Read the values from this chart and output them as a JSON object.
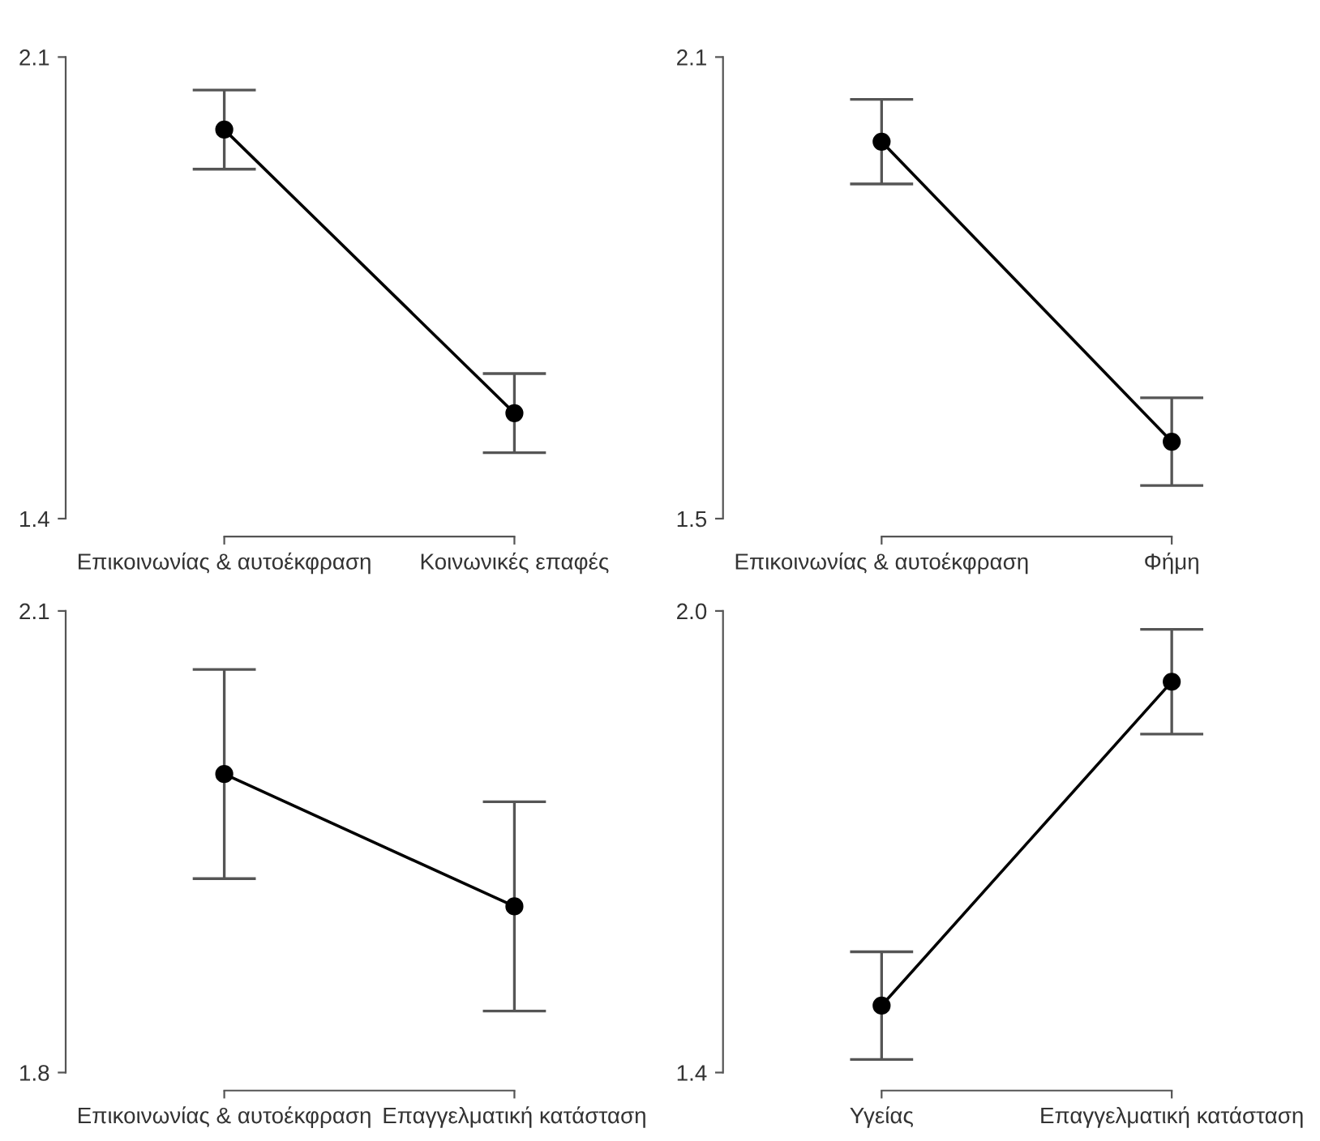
{
  "chart_data": [
    {
      "type": "line",
      "categories": [
        "Επικοινωνίας & αυτοέκφραση",
        "Κοινωνικές επαφές"
      ],
      "series": [
        {
          "color": "#000000",
          "values": [
            1.99,
            1.56
          ],
          "errors": [
            0.06,
            0.06
          ]
        }
      ],
      "ylim": [
        1.4,
        2.1
      ],
      "yticks": [
        2.1,
        1.4
      ],
      "marker": "circle",
      "line_style": "solid",
      "grid": false,
      "legend": false
    },
    {
      "type": "line",
      "categories": [
        "Επικοινωνίας & αυτοέκφραση",
        "Φήμη"
      ],
      "series": [
        {
          "color": "#000000",
          "values": [
            1.99,
            1.6
          ],
          "errors": [
            0.055,
            0.057
          ]
        }
      ],
      "ylim": [
        1.5,
        2.1
      ],
      "yticks": [
        2.1,
        1.5
      ],
      "marker": "circle",
      "line_style": "solid",
      "grid": false,
      "legend": false
    },
    {
      "type": "line",
      "categories": [
        "Επικοινωνίας & αυτοέκφραση",
        "Επαγγελματική κατάσταση"
      ],
      "series": [
        {
          "color": "#000000",
          "values": [
            1.994,
            1.908
          ],
          "errors": [
            0.068,
            0.068
          ]
        }
      ],
      "ylim": [
        1.8,
        2.1
      ],
      "yticks": [
        2.1,
        1.8
      ],
      "marker": "circle",
      "line_style": "solid",
      "grid": false,
      "legend": false
    },
    {
      "type": "line",
      "categories": [
        "Υγείας",
        "Επαγγελματική κατάσταση"
      ],
      "series": [
        {
          "color": "#000000",
          "values": [
            1.487,
            1.908
          ],
          "errors": [
            0.07,
            0.068
          ]
        }
      ],
      "ylim": [
        1.4,
        2.0
      ],
      "yticks": [
        {
          "value": 2.0,
          "label": "2.0"
        },
        1.4
      ],
      "marker": "circle",
      "line_style": "solid",
      "grid": false,
      "legend": false
    }
  ]
}
